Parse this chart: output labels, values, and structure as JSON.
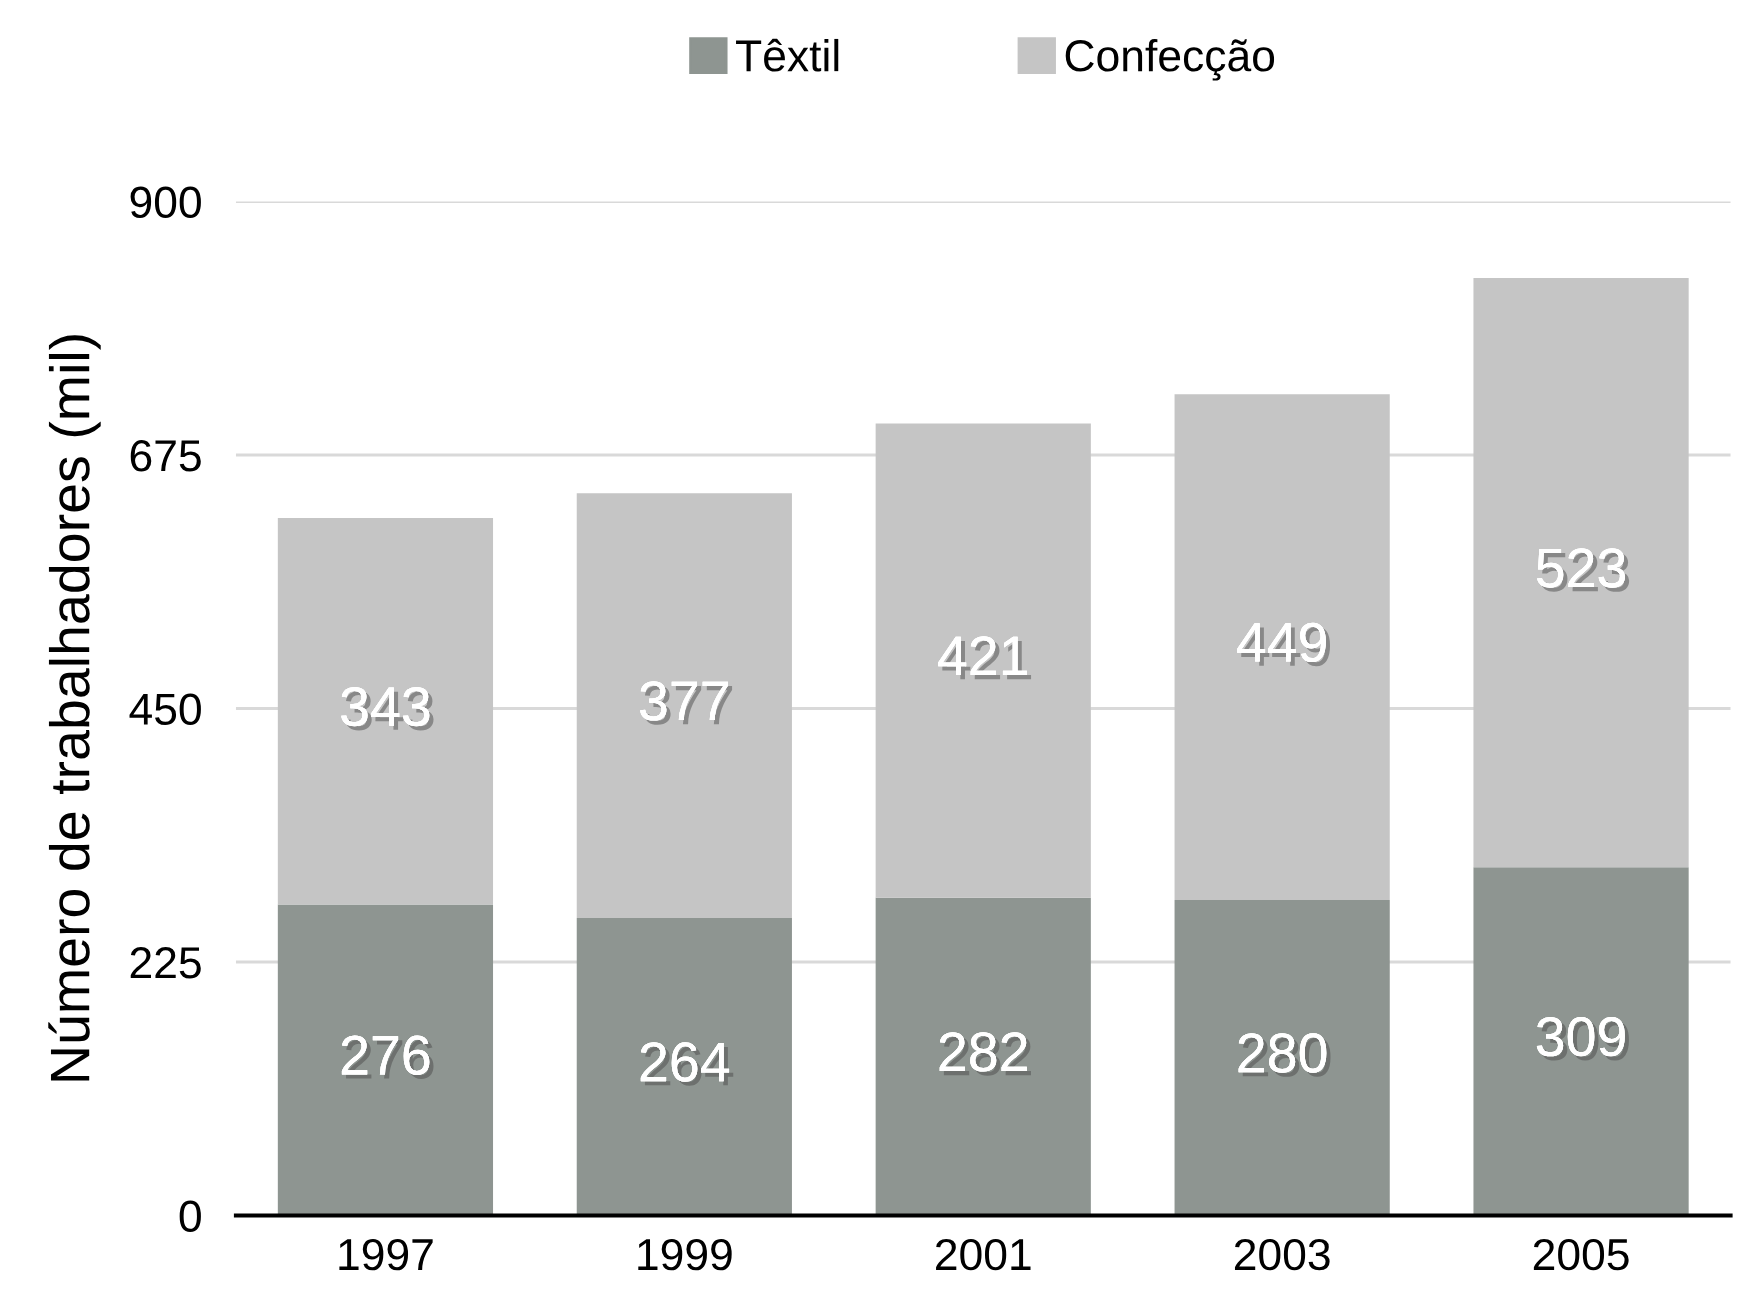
{
  "chart_data": {
    "type": "bar",
    "stacked": true,
    "ylabel": "Número de trabalhadores (mil)",
    "categories": [
      "1997",
      "1999",
      "2001",
      "2003",
      "2005"
    ],
    "series": [
      {
        "name": "Têxtil",
        "color": "#8e9591",
        "values": [
          276,
          264,
          282,
          280,
          309
        ]
      },
      {
        "name": "Confecção",
        "color": "#c5c5c5",
        "values": [
          343,
          377,
          421,
          449,
          523
        ]
      }
    ],
    "ylim": [
      0,
      900
    ],
    "yticks": [
      0,
      225,
      450,
      675,
      900
    ],
    "grid": "y",
    "legend": "top",
    "data_labels": true
  }
}
